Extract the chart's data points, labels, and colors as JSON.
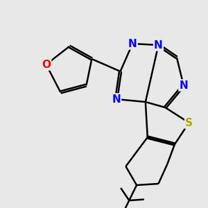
{
  "bg_color": "#e8e8e8",
  "bond_color": "#000000",
  "bond_width": 1.8,
  "double_sep": 0.05,
  "atom_colors": {
    "N": "#0000ff",
    "O": "#ff0000",
    "S": "#aaaa00",
    "C": "#000000"
  },
  "xlim": [
    0,
    10
  ],
  "ylim": [
    0,
    10
  ]
}
